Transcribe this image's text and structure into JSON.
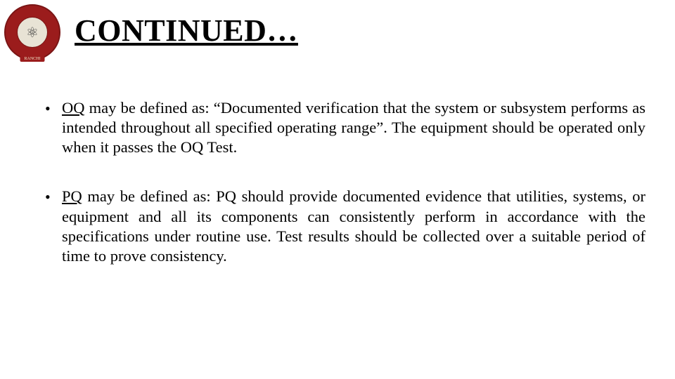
{
  "logo": {
    "banner_text": "RANCHI",
    "outer_color": "#9b1c1c",
    "inner_color": "#e8e3d5",
    "glyph": "⚛"
  },
  "title": "CONTINUED…",
  "title_color": "#000000",
  "title_fontsize": 44,
  "background_color": "#ffffff",
  "bullets": [
    {
      "term": "OQ",
      "rest": " may be defined as: “Documented verification that the system or subsystem performs as intended throughout all specified operating range”. The equipment should be operated only when it passes the OQ Test."
    },
    {
      "term": "PQ",
      "rest": " may be defined as: PQ should provide documented evidence that utilities, systems, or equipment and all its components can consistently perform in accordance with the specifications under routine use. Test results should be collected over a suitable period of time to prove consistency."
    }
  ],
  "body_fontsize": 22.5,
  "body_color": "#000000"
}
